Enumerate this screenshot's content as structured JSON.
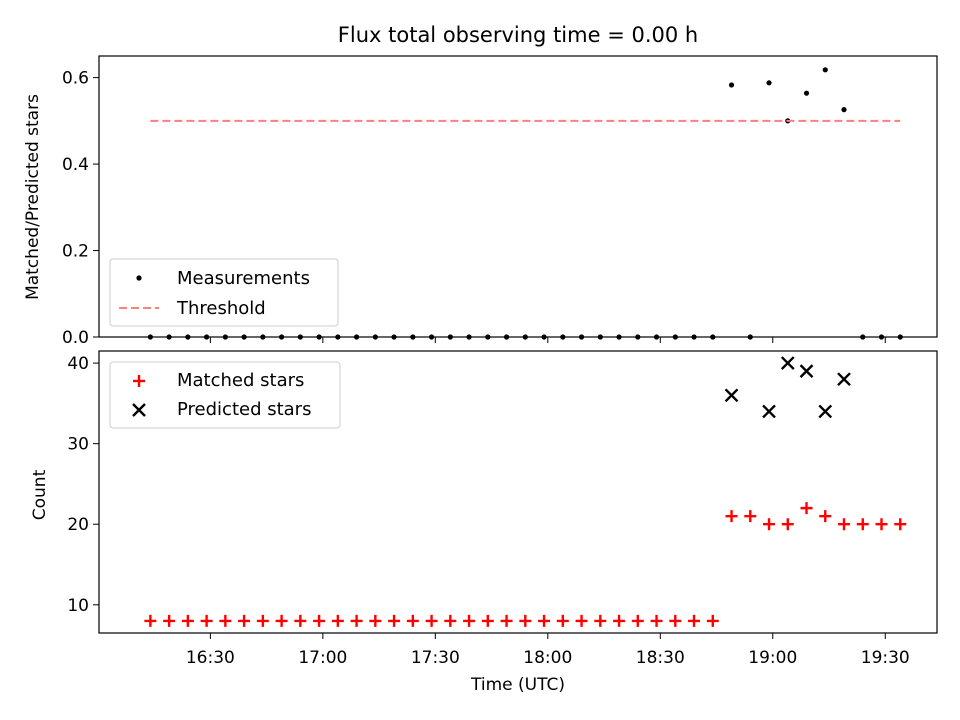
{
  "chart_data": [
    {
      "type": "scatter",
      "title": "Flux total observing time = 0.00 h",
      "xlabel": "",
      "ylabel": "Matched/Predicted stars",
      "ylim": [
        0,
        0.65
      ],
      "yticks": [
        0.0,
        0.2,
        0.4,
        0.6
      ],
      "ytick_labels": [
        "0.0",
        "0.2",
        "0.4",
        "0.6"
      ],
      "grid": false,
      "legend_position": "lower-left",
      "series": [
        {
          "name": "Measurements",
          "kind": "dots",
          "color": "#000000",
          "points": [
            [
              "16:14",
              0
            ],
            [
              "16:19",
              0
            ],
            [
              "16:24",
              0
            ],
            [
              "16:29",
              0
            ],
            [
              "16:34",
              0
            ],
            [
              "16:39",
              0
            ],
            [
              "16:44",
              0
            ],
            [
              "16:49",
              0
            ],
            [
              "16:54",
              0
            ],
            [
              "16:59",
              0
            ],
            [
              "17:04",
              0
            ],
            [
              "17:09",
              0
            ],
            [
              "17:14",
              0
            ],
            [
              "17:19",
              0
            ],
            [
              "17:24",
              0
            ],
            [
              "17:29",
              0
            ],
            [
              "17:34",
              0
            ],
            [
              "17:39",
              0
            ],
            [
              "17:44",
              0
            ],
            [
              "17:49",
              0
            ],
            [
              "17:54",
              0
            ],
            [
              "17:59",
              0
            ],
            [
              "18:04",
              0
            ],
            [
              "18:09",
              0
            ],
            [
              "18:14",
              0
            ],
            [
              "18:19",
              0
            ],
            [
              "18:24",
              0
            ],
            [
              "18:29",
              0
            ],
            [
              "18:34",
              0
            ],
            [
              "18:39",
              0
            ],
            [
              "18:44",
              0
            ],
            [
              "18:49",
              0.583
            ],
            [
              "18:54",
              0
            ],
            [
              "18:59",
              0.588
            ],
            [
              "19:04",
              0.5
            ],
            [
              "19:09",
              0.564
            ],
            [
              "19:14",
              0.618
            ],
            [
              "19:19",
              0.526
            ],
            [
              "19:24",
              0
            ],
            [
              "19:29",
              0
            ],
            [
              "19:34",
              0
            ]
          ]
        },
        {
          "name": "Threshold",
          "kind": "dashed-line",
          "color": "#ff7f7f",
          "points": [
            [
              "16:14",
              0.5
            ],
            [
              "19:34",
              0.5
            ]
          ]
        }
      ]
    },
    {
      "type": "scatter",
      "title": "",
      "xlabel": "Time (UTC)",
      "ylabel": "Count",
      "ylim": [
        6.5,
        41.5
      ],
      "yticks": [
        10,
        20,
        30,
        40
      ],
      "ytick_labels": [
        "10",
        "20",
        "30",
        "40"
      ],
      "xtick_labels": [
        "16:30",
        "17:00",
        "17:30",
        "18:00",
        "18:30",
        "19:00",
        "19:30"
      ],
      "grid": false,
      "legend_position": "upper-left",
      "series": [
        {
          "name": "Matched stars",
          "kind": "plus",
          "color": "#ff0000",
          "points": [
            [
              "16:14",
              8
            ],
            [
              "16:19",
              8
            ],
            [
              "16:24",
              8
            ],
            [
              "16:29",
              8
            ],
            [
              "16:34",
              8
            ],
            [
              "16:39",
              8
            ],
            [
              "16:44",
              8
            ],
            [
              "16:49",
              8
            ],
            [
              "16:54",
              8
            ],
            [
              "16:59",
              8
            ],
            [
              "17:04",
              8
            ],
            [
              "17:09",
              8
            ],
            [
              "17:14",
              8
            ],
            [
              "17:19",
              8
            ],
            [
              "17:24",
              8
            ],
            [
              "17:29",
              8
            ],
            [
              "17:34",
              8
            ],
            [
              "17:39",
              8
            ],
            [
              "17:44",
              8
            ],
            [
              "17:49",
              8
            ],
            [
              "17:54",
              8
            ],
            [
              "17:59",
              8
            ],
            [
              "18:04",
              8
            ],
            [
              "18:09",
              8
            ],
            [
              "18:14",
              8
            ],
            [
              "18:19",
              8
            ],
            [
              "18:24",
              8
            ],
            [
              "18:29",
              8
            ],
            [
              "18:34",
              8
            ],
            [
              "18:39",
              8
            ],
            [
              "18:44",
              8
            ],
            [
              "18:49",
              21
            ],
            [
              "18:54",
              21
            ],
            [
              "18:59",
              20
            ],
            [
              "19:04",
              20
            ],
            [
              "19:09",
              22
            ],
            [
              "19:14",
              21
            ],
            [
              "19:19",
              20
            ],
            [
              "19:24",
              20
            ],
            [
              "19:29",
              20
            ],
            [
              "19:34",
              20
            ]
          ]
        },
        {
          "name": "Predicted stars",
          "kind": "x",
          "color": "#000000",
          "points": [
            [
              "18:49",
              36
            ],
            [
              "18:59",
              34
            ],
            [
              "19:04",
              40
            ],
            [
              "19:09",
              39
            ],
            [
              "19:14",
              34
            ],
            [
              "19:19",
              38
            ]
          ]
        }
      ]
    }
  ]
}
